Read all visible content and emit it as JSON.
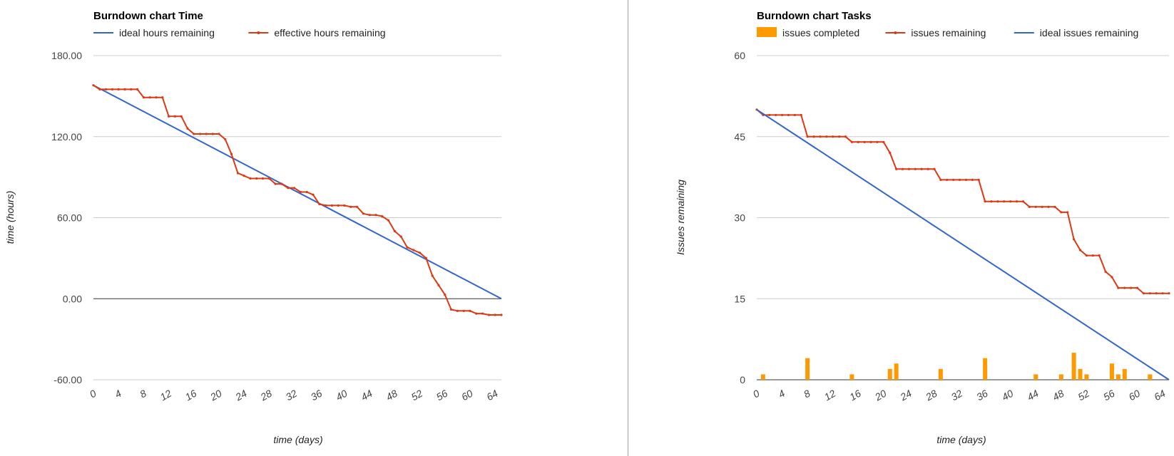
{
  "chart_data": [
    {
      "id": "time",
      "type": "line",
      "title": "Burndown chart Time",
      "xlabel": "time (days)",
      "ylabel": "time (hours)",
      "xlim": [
        0,
        65
      ],
      "ylim": [
        -60,
        180
      ],
      "y_ticks": [
        "180.00",
        "120.00",
        "60.00",
        "0.00",
        "-60.00"
      ],
      "y_tick_values": [
        180,
        120,
        60,
        0,
        -60
      ],
      "x_ticks": [
        0,
        4,
        8,
        12,
        16,
        20,
        24,
        28,
        32,
        36,
        40,
        44,
        48,
        52,
        56,
        60,
        64
      ],
      "grid": true,
      "legend_position": "top",
      "series": [
        {
          "name": "ideal hours remaining",
          "color": "#3366cc",
          "markers": false,
          "x": [
            0,
            65
          ],
          "y": [
            158,
            0
          ]
        },
        {
          "name": "effective hours remaining",
          "color": "#dc3912",
          "markers": true,
          "x": [
            0,
            1,
            2,
            3,
            4,
            5,
            6,
            7,
            8,
            9,
            10,
            11,
            12,
            13,
            14,
            15,
            16,
            17,
            18,
            19,
            20,
            21,
            22,
            23,
            24,
            25,
            26,
            27,
            28,
            29,
            30,
            31,
            32,
            33,
            34,
            35,
            36,
            37,
            38,
            39,
            40,
            41,
            42,
            43,
            44,
            45,
            46,
            47,
            48,
            49,
            50,
            51,
            52,
            53,
            54,
            55,
            56,
            57,
            58,
            59,
            60,
            61,
            62,
            63,
            64,
            65
          ],
          "y": [
            158,
            155,
            155,
            155,
            155,
            155,
            155,
            155,
            149,
            149,
            149,
            149,
            135,
            135,
            135,
            126,
            122,
            122,
            122,
            122,
            122,
            118,
            107,
            93,
            91,
            89,
            89,
            89,
            89,
            85,
            85,
            82,
            82,
            79,
            79,
            77,
            70,
            69,
            69,
            69,
            69,
            68,
            68,
            63,
            62,
            62,
            61,
            58,
            50,
            46,
            38,
            36,
            34,
            30,
            17,
            10,
            3,
            -8,
            -9,
            -9,
            -9,
            -11,
            -11,
            -12,
            -12,
            -12
          ]
        }
      ]
    },
    {
      "id": "tasks",
      "type": "bar+line",
      "title": "Burndown chart Tasks",
      "xlabel": "time (days)",
      "ylabel": "Issues remaining",
      "xlim": [
        0,
        65
      ],
      "ylim": [
        0,
        60
      ],
      "y_ticks": [
        "60",
        "45",
        "30",
        "15",
        "0"
      ],
      "y_tick_values": [
        60,
        45,
        30,
        15,
        0
      ],
      "x_ticks": [
        0,
        4,
        8,
        12,
        16,
        20,
        24,
        28,
        32,
        36,
        40,
        44,
        48,
        52,
        56,
        60,
        64
      ],
      "grid": true,
      "legend_position": "top",
      "series": [
        {
          "name": "issues completed",
          "type": "bar",
          "color": "#ff9900",
          "x": [
            1,
            8,
            15,
            21,
            22,
            29,
            36,
            44,
            48,
            50,
            51,
            52,
            56,
            57,
            58,
            62
          ],
          "y": [
            1,
            4,
            1,
            2,
            3,
            2,
            4,
            1,
            1,
            5,
            2,
            1,
            3,
            1,
            2,
            1
          ]
        },
        {
          "name": "issues remaining",
          "type": "line",
          "color": "#dc3912",
          "markers": true,
          "x": [
            0,
            1,
            2,
            3,
            4,
            5,
            6,
            7,
            8,
            9,
            10,
            11,
            12,
            13,
            14,
            15,
            16,
            17,
            18,
            19,
            20,
            21,
            22,
            23,
            24,
            25,
            26,
            27,
            28,
            29,
            30,
            31,
            32,
            33,
            34,
            35,
            36,
            37,
            38,
            39,
            40,
            41,
            42,
            43,
            44,
            45,
            46,
            47,
            48,
            49,
            50,
            51,
            52,
            53,
            54,
            55,
            56,
            57,
            58,
            59,
            60,
            61,
            62,
            63,
            64,
            65
          ],
          "y": [
            50,
            49,
            49,
            49,
            49,
            49,
            49,
            49,
            45,
            45,
            45,
            45,
            45,
            45,
            45,
            44,
            44,
            44,
            44,
            44,
            44,
            42,
            39,
            39,
            39,
            39,
            39,
            39,
            39,
            37,
            37,
            37,
            37,
            37,
            37,
            37,
            33,
            33,
            33,
            33,
            33,
            33,
            33,
            32,
            32,
            32,
            32,
            32,
            31,
            31,
            26,
            24,
            23,
            23,
            23,
            20,
            19,
            17,
            17,
            17,
            17,
            16,
            16,
            16,
            16,
            16
          ]
        },
        {
          "name": "ideal issues remaining",
          "type": "line",
          "color": "#3366cc",
          "markers": false,
          "x": [
            0,
            65
          ],
          "y": [
            50,
            0
          ]
        }
      ]
    }
  ]
}
